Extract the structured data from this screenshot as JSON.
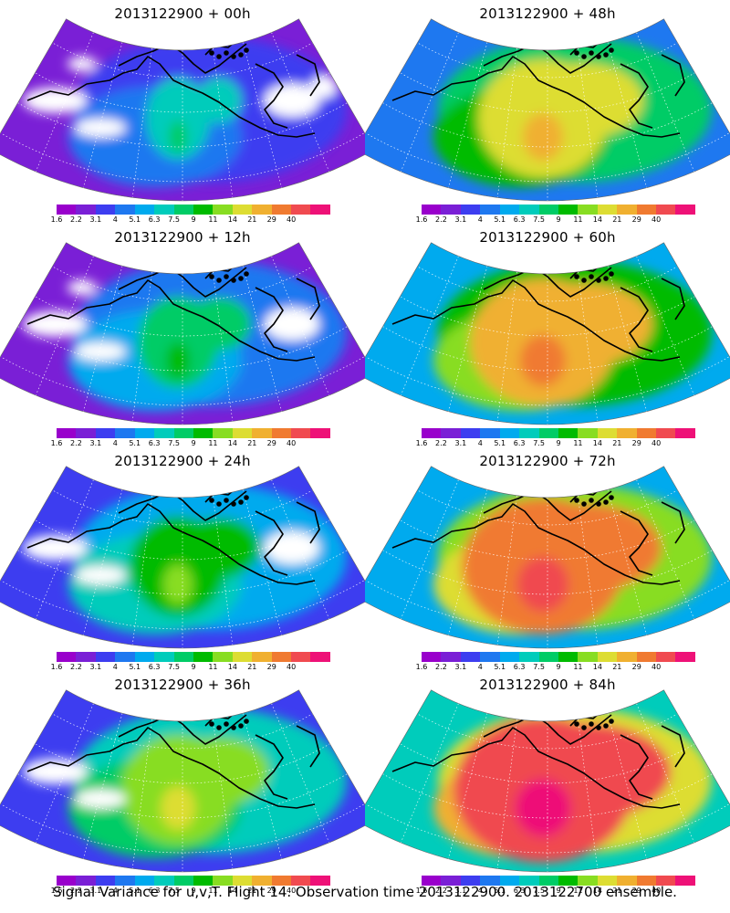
{
  "panels": [
    {
      "title": "2013122900  +  00h",
      "level": 0
    },
    {
      "title": "2013122900  +  48h",
      "level": 4
    },
    {
      "title": "2013122900  +  12h",
      "level": 1
    },
    {
      "title": "2013122900  +  60h",
      "level": 5
    },
    {
      "title": "2013122900  +  24h",
      "level": 2
    },
    {
      "title": "2013122900  +  72h",
      "level": 6
    },
    {
      "title": "2013122900  +  36h",
      "level": 3
    },
    {
      "title": "2013122900  +  84h",
      "level": 7
    }
  ],
  "colorbar": {
    "labels": [
      "1.6",
      "2.2",
      "3.1",
      "4",
      "5.1",
      "6.3",
      "7.5",
      "9",
      "11",
      "14",
      "21",
      "29",
      "40"
    ],
    "colors": [
      "#9900cc",
      "#7a1fd6",
      "#3d3df0",
      "#1e78f0",
      "#00aaee",
      "#00ccbb",
      "#00cc66",
      "#00bb00",
      "#88dd22",
      "#dddd33",
      "#f0b030",
      "#f07a30",
      "#f04a50",
      "#ee1177"
    ]
  },
  "caption": "Signal Variance for u,v,T.  Flight 14.  Observation time 2013122900.  2013122700 ensemble."
}
